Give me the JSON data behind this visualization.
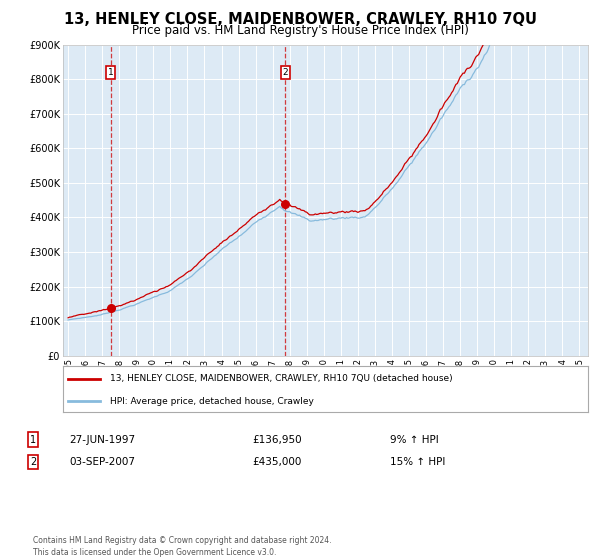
{
  "title": "13, HENLEY CLOSE, MAIDENBOWER, CRAWLEY, RH10 7QU",
  "subtitle": "Price paid vs. HM Land Registry's House Price Index (HPI)",
  "title_fontsize": 10.5,
  "subtitle_fontsize": 8.5,
  "background_color": "#ffffff",
  "plot_bg_color": "#ddeaf5",
  "grid_color": "#ffffff",
  "red_line_color": "#cc0000",
  "blue_line_color": "#88bbdd",
  "purchase1_year": 1997.49,
  "purchase1_price": 136950,
  "purchase2_year": 2007.67,
  "purchase2_price": 435000,
  "ylim": [
    0,
    900000
  ],
  "xlim_start": 1994.7,
  "xlim_end": 2025.5,
  "ytick_values": [
    0,
    100000,
    200000,
    300000,
    400000,
    500000,
    600000,
    700000,
    800000,
    900000
  ],
  "ytick_labels": [
    "£0",
    "£100K",
    "£200K",
    "£300K",
    "£400K",
    "£500K",
    "£600K",
    "£700K",
    "£800K",
    "£900K"
  ],
  "xtick_start": 1995,
  "xtick_end": 2025,
  "legend_line1": "13, HENLEY CLOSE, MAIDENBOWER, CRAWLEY, RH10 7QU (detached house)",
  "legend_line2": "HPI: Average price, detached house, Crawley",
  "ann1_box": "1",
  "ann1_date": "27-JUN-1997",
  "ann1_price": "£136,950",
  "ann1_hpi": "9% ↑ HPI",
  "ann2_box": "2",
  "ann2_date": "03-SEP-2007",
  "ann2_price": "£435,000",
  "ann2_hpi": "15% ↑ HPI",
  "footer": "Contains HM Land Registry data © Crown copyright and database right 2024.\nThis data is licensed under the Open Government Licence v3.0."
}
